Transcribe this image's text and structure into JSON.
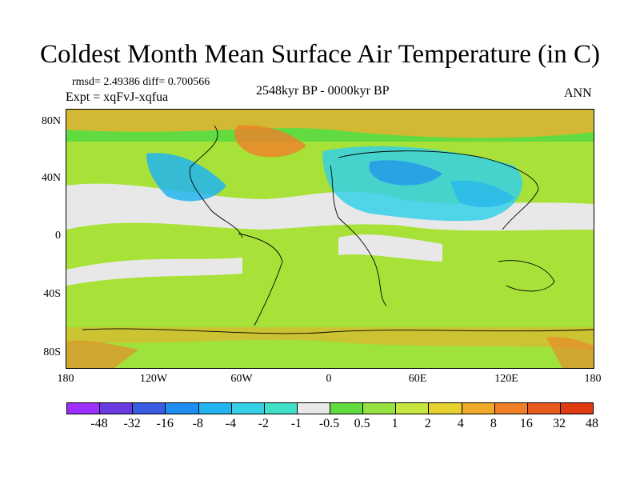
{
  "title": "Coldest Month Mean Surface Air Temperature (in C)",
  "stats": "rmsd= 2.49386 diff= 0.700566",
  "experiment": "Expt = xqFvJ-xqfua",
  "period": "2548kyr BP - 0000kyr BP",
  "season": "ANN",
  "lat_labels": [
    "80N",
    "40N",
    "0",
    "40S",
    "80S"
  ],
  "lon_labels": [
    "180",
    "120W",
    "60W",
    "0",
    "60E",
    "120E",
    "180"
  ],
  "colorbar": {
    "labels": [
      "-48",
      "-32",
      "-16",
      "-8",
      "-4",
      "-2",
      "-1",
      "-0.5",
      "0.5",
      "1",
      "2",
      "4",
      "8",
      "16",
      "32",
      "48"
    ],
    "colors": [
      "#9b30ff",
      "#6a3be0",
      "#3a5ce0",
      "#1e8ef0",
      "#22b4f0",
      "#35d0e6",
      "#40e0c8",
      "#e8e8e8",
      "#60dc40",
      "#96e040",
      "#c8e640",
      "#e6d22e",
      "#f0aa2a",
      "#f08028",
      "#e85a1e",
      "#e03a12"
    ]
  }
}
